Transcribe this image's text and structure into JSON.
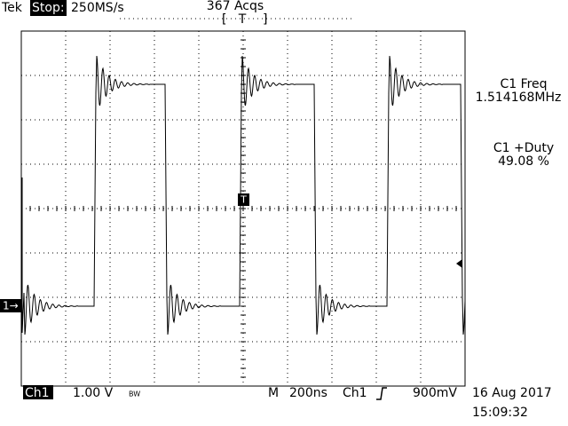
{
  "header": {
    "brand": "Tek",
    "state": "Stop:",
    "sample_rate": "250MS/s",
    "acquisitions": "367 Acqs",
    "trigger_position": "T"
  },
  "markers": {
    "channel": "1→",
    "trigger": "T"
  },
  "measurements": [
    {
      "label": "C1 Freq",
      "value": "1.514168MHz"
    },
    {
      "label": "C1 +Duty",
      "value": "49.08 %"
    }
  ],
  "footer": {
    "channel": "Ch1",
    "volts_per_div": "1.00 V",
    "bandwidth": "BW",
    "timebase_label": "M",
    "time_per_div": "200ns",
    "trigger_source": "Ch1",
    "trigger_level": "900mV",
    "date": "16 Aug 2017",
    "time": "15:09:32"
  }
}
